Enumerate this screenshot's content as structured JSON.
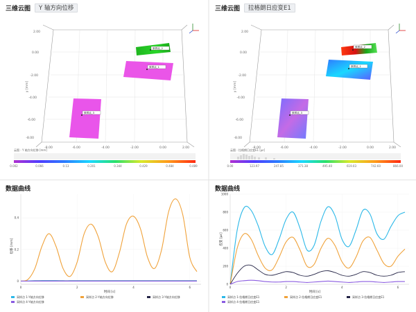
{
  "panels": {
    "view3d_left": {
      "title": "三维云图",
      "selector": "Y 轴方向位移",
      "y_ticks": [
        "2.00",
        "0.00",
        "-2.00",
        "-4.00",
        "-6.00",
        "-8.00"
      ],
      "x_ticks": [
        "-8.00",
        "-6.00",
        "-4.00",
        "-2.00",
        "0.00",
        "2.00"
      ],
      "axis_label": "y [mm]",
      "points": [
        "采样点_1",
        "采样点_2",
        "采样点_3"
      ],
      "colorbar": {
        "caption": "云图 - Y 轴方向位移 [mm]",
        "ticks": [
          "0.002",
          "0.066",
          "0.13",
          "0.201",
          "0.344",
          "0.429",
          "0.484",
          "0.489"
        ]
      }
    },
    "view3d_right": {
      "title": "三维云图",
      "selector": "拉格朗日应变E1",
      "y_ticks": [
        "2.00",
        "0.00",
        "-2.00",
        "-4.00",
        "-6.00",
        "-8.00"
      ],
      "x_ticks": [
        "-8.00",
        "-6.00",
        "-4.00",
        "-2.00",
        "0.00",
        "2.00"
      ],
      "axis_label": "y [mm]",
      "points": [
        "采样点_1",
        "采样点_2",
        "采样点_3"
      ],
      "colorbar": {
        "caption": "云图 - 拉格朗日应变E1 [με]",
        "ticks": [
          "0.00",
          "123.97",
          "247.85",
          "371.38",
          "495.40",
          "619.03",
          "742.60",
          "866.00"
        ]
      }
    },
    "curve_left": {
      "title": "数据曲线",
      "ylabel": "位移 [mm]",
      "xlabel": "时间 [s]",
      "y_ticks": [
        "0",
        "0.2",
        "0.4"
      ],
      "x_ticks": [
        "0",
        "2",
        "4",
        "6"
      ],
      "legend": [
        {
          "label": "采样点 1-Y轴方向位移",
          "color": "#2bb8e8"
        },
        {
          "label": "采样点 2-Y轴方向位移",
          "color": "#f0a23a"
        },
        {
          "label": "采样点 3-Y轴方向位移",
          "color": "#222244"
        },
        {
          "label": "采样点 4-Y轴方向位移",
          "color": "#8a5be0"
        }
      ]
    },
    "curve_right": {
      "title": "数据曲线",
      "ylabel": "应变 [με]",
      "xlabel": "时间 [s]",
      "y_ticks": [
        "0",
        "200",
        "400",
        "600",
        "800",
        "1000"
      ],
      "x_ticks": [
        "0",
        "2",
        "4",
        "6"
      ],
      "legend": [
        {
          "label": "采样点 1-拉格朗日应变E1",
          "color": "#2bb8e8"
        },
        {
          "label": "采样点 2-拉格朗日应变E1",
          "color": "#f0a23a"
        },
        {
          "label": "采样点 3-拉格朗日应变E1",
          "color": "#222244"
        },
        {
          "label": "采样点 4-拉格朗日应变E1",
          "color": "#8a5be0"
        }
      ]
    }
  },
  "chart_data": [
    {
      "type": "line",
      "xlabel": "时间 [s]",
      "ylabel": "位移 [mm]",
      "xlim": [
        0,
        6.4
      ],
      "ylim": [
        -0.02,
        0.55
      ],
      "x": [
        0,
        0.25,
        0.5,
        0.75,
        1.0,
        1.25,
        1.5,
        1.75,
        2.0,
        2.25,
        2.5,
        2.75,
        3.0,
        3.25,
        3.5,
        3.75,
        4.0,
        4.25,
        4.5,
        4.75,
        5.0,
        5.25,
        5.5,
        5.75,
        6.0,
        6.25
      ],
      "series": [
        {
          "name": "采样点 1-Y轴方向位移",
          "values": [
            0,
            0.001,
            0.002,
            0.003,
            0.003,
            0.003,
            0.002,
            0.002,
            0.002,
            0.002,
            0.002,
            0.002,
            0.002,
            0.002,
            0.002,
            0.002,
            0.002,
            0.002,
            0.002,
            0.002,
            0.002,
            0.002,
            0.002,
            0.002,
            0.002,
            0.002
          ]
        },
        {
          "name": "采样点 2-Y轴方向位移",
          "values": [
            0,
            0.01,
            0.08,
            0.22,
            0.3,
            0.22,
            0.08,
            0.03,
            0.12,
            0.3,
            0.36,
            0.28,
            0.12,
            0.06,
            0.18,
            0.36,
            0.41,
            0.33,
            0.15,
            0.08,
            0.2,
            0.44,
            0.52,
            0.42,
            0.15,
            0.06
          ]
        },
        {
          "name": "采样点 3-Y轴方向位移",
          "values": [
            0,
            0,
            0.001,
            0.001,
            0.001,
            0.001,
            0.001,
            0.001,
            0.001,
            0.001,
            0.001,
            0.001,
            0.001,
            0.001,
            0.001,
            0.001,
            0.001,
            0.001,
            0.001,
            0.001,
            0.001,
            0.001,
            0.001,
            0.001,
            0.001,
            0.001
          ]
        },
        {
          "name": "采样点 4-Y轴方向位移",
          "values": [
            0,
            0,
            0,
            0,
            0,
            0,
            0,
            0,
            0,
            0,
            0,
            0,
            0,
            0,
            0,
            0,
            0,
            0,
            0,
            0,
            0,
            0,
            0,
            0,
            0,
            0
          ]
        }
      ]
    },
    {
      "type": "line",
      "xlabel": "时间 [s]",
      "ylabel": "应变 [με]",
      "xlim": [
        0,
        6.4
      ],
      "ylim": [
        0,
        1000
      ],
      "x": [
        0,
        0.25,
        0.5,
        0.75,
        1.0,
        1.25,
        1.5,
        1.75,
        2.0,
        2.25,
        2.5,
        2.75,
        3.0,
        3.25,
        3.5,
        3.75,
        4.0,
        4.25,
        4.5,
        4.75,
        5.0,
        5.25,
        5.5,
        5.75,
        6.0,
        6.25
      ],
      "series": [
        {
          "name": "采样点 1-拉格朗日应变E1",
          "values": [
            0,
            600,
            850,
            820,
            650,
            420,
            330,
            500,
            720,
            800,
            620,
            380,
            430,
            700,
            860,
            760,
            500,
            420,
            600,
            820,
            780,
            560,
            500,
            640,
            760,
            800
          ]
        },
        {
          "name": "采样点 2-拉格朗日应变E1",
          "values": [
            0,
            400,
            560,
            500,
            320,
            180,
            160,
            300,
            470,
            520,
            380,
            200,
            220,
            400,
            510,
            430,
            250,
            180,
            300,
            480,
            520,
            380,
            230,
            200,
            310,
            390
          ]
        },
        {
          "name": "采样点 3-拉格朗日应变E1",
          "values": [
            0,
            120,
            200,
            210,
            160,
            110,
            100,
            120,
            140,
            130,
            100,
            90,
            110,
            140,
            150,
            130,
            100,
            90,
            110,
            140,
            130,
            100,
            90,
            100,
            130,
            140
          ]
        },
        {
          "name": "采样点 4-拉格朗日应变E1",
          "values": [
            0,
            30,
            40,
            45,
            40,
            30,
            25,
            25,
            30,
            30,
            25,
            20,
            25,
            30,
            35,
            30,
            25,
            20,
            25,
            30,
            30,
            25,
            20,
            25,
            30,
            30
          ]
        }
      ]
    }
  ]
}
